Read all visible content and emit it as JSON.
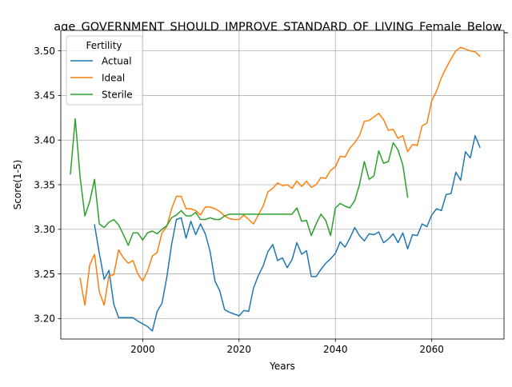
{
  "chart_data": {
    "type": "line",
    "title": "age_GOVERNMENT_SHOULD_IMPROVE_STANDARD_OF_LIVING_Female_Below_",
    "xlabel": "Years",
    "ylabel": "Score(1-5)",
    "xlim": [
      1983,
      2075
    ],
    "ylim": [
      3.177,
      3.523
    ],
    "xticks": [
      2000,
      2020,
      2040,
      2060
    ],
    "xtick_labels": [
      "2000",
      "2020",
      "2040",
      "2060"
    ],
    "yticks": [
      3.2,
      3.25,
      3.3,
      3.35,
      3.4,
      3.45,
      3.5
    ],
    "ytick_labels": [
      "3.20",
      "3.25",
      "3.30",
      "3.35",
      "3.40",
      "3.45",
      "3.50"
    ],
    "grid": true,
    "legend": {
      "title": "Fertility",
      "position": "top-left"
    },
    "series": [
      {
        "name": "Actual",
        "color": "#1f77b4",
        "x": [
          1990,
          1991,
          1992,
          1993,
          1994,
          1995,
          1996,
          1997,
          1998,
          1999,
          2000,
          2001,
          2002,
          2003,
          2004,
          2005,
          2006,
          2007,
          2008,
          2009,
          2010,
          2011,
          2012,
          2013,
          2014,
          2015,
          2016,
          2017,
          2018,
          2019,
          2020,
          2021,
          2022,
          2023,
          2024,
          2025,
          2026,
          2027,
          2028,
          2029,
          2030,
          2031,
          2032,
          2033,
          2034,
          2035,
          2036,
          2037,
          2038,
          2039,
          2040,
          2041,
          2042,
          2043,
          2044,
          2045,
          2046,
          2047,
          2048,
          2049,
          2050,
          2051,
          2052,
          2053,
          2054,
          2055,
          2056,
          2057,
          2058,
          2059,
          2060,
          2061,
          2062,
          2063,
          2064,
          2065,
          2066,
          2067,
          2068,
          2069,
          2070
        ],
        "y": [
          3.305,
          3.273,
          3.244,
          3.254,
          3.216,
          3.201,
          3.201,
          3.201,
          3.201,
          3.197,
          3.194,
          3.191,
          3.186,
          3.208,
          3.217,
          3.246,
          3.283,
          3.311,
          3.313,
          3.29,
          3.309,
          3.294,
          3.306,
          3.295,
          3.275,
          3.242,
          3.231,
          3.21,
          3.207,
          3.205,
          3.203,
          3.209,
          3.208,
          3.234,
          3.248,
          3.259,
          3.275,
          3.283,
          3.265,
          3.268,
          3.257,
          3.266,
          3.285,
          3.272,
          3.276,
          3.247,
          3.247,
          3.255,
          3.262,
          3.267,
          3.273,
          3.286,
          3.28,
          3.29,
          3.302,
          3.293,
          3.287,
          3.295,
          3.294,
          3.297,
          3.285,
          3.289,
          3.295,
          3.285,
          3.296,
          3.278,
          3.294,
          3.293,
          3.306,
          3.303,
          3.316,
          3.323,
          3.321,
          3.339,
          3.34,
          3.364,
          3.355,
          3.387,
          3.38,
          3.405,
          3.392
        ]
      },
      {
        "name": "Ideal",
        "color": "#ff7f0e",
        "x": [
          1987,
          1988,
          1989,
          1990,
          1991,
          1992,
          1993,
          1994,
          1995,
          1996,
          1997,
          1998,
          1999,
          2000,
          2001,
          2002,
          2003,
          2004,
          2005,
          2006,
          2007,
          2008,
          2009,
          2010,
          2011,
          2012,
          2013,
          2014,
          2015,
          2016,
          2017,
          2018,
          2019,
          2020,
          2021,
          2022,
          2023,
          2024,
          2025,
          2026,
          2027,
          2028,
          2029,
          2030,
          2031,
          2032,
          2033,
          2034,
          2035,
          2036,
          2037,
          2038,
          2039,
          2040,
          2041,
          2042,
          2043,
          2044,
          2045,
          2046,
          2047,
          2048,
          2049,
          2050,
          2051,
          2052,
          2053,
          2054,
          2055,
          2056,
          2057,
          2058,
          2059,
          2060,
          2061,
          2062,
          2063,
          2064,
          2065,
          2066,
          2067,
          2068,
          2069,
          2070
        ],
        "y": [
          3.245,
          3.215,
          3.26,
          3.272,
          3.23,
          3.215,
          3.248,
          3.249,
          3.277,
          3.268,
          3.262,
          3.265,
          3.25,
          3.242,
          3.253,
          3.27,
          3.274,
          3.296,
          3.303,
          3.323,
          3.337,
          3.337,
          3.323,
          3.323,
          3.321,
          3.316,
          3.325,
          3.325,
          3.323,
          3.32,
          3.315,
          3.312,
          3.311,
          3.311,
          3.316,
          3.311,
          3.306,
          3.316,
          3.326,
          3.342,
          3.346,
          3.352,
          3.349,
          3.35,
          3.346,
          3.354,
          3.348,
          3.354,
          3.347,
          3.35,
          3.358,
          3.357,
          3.366,
          3.37,
          3.382,
          3.381,
          3.391,
          3.397,
          3.405,
          3.421,
          3.422,
          3.426,
          3.43,
          3.423,
          3.411,
          3.412,
          3.402,
          3.405,
          3.387,
          3.395,
          3.394,
          3.416,
          3.419,
          3.444,
          3.455,
          3.47,
          3.481,
          3.491,
          3.5,
          3.504,
          3.502,
          3.5,
          3.499,
          3.494
        ]
      },
      {
        "name": "Sterile",
        "color": "#2ca02c",
        "x": [
          1985,
          1986,
          1987,
          1988,
          1989,
          1990,
          1991,
          1992,
          1993,
          1994,
          1995,
          1996,
          1997,
          1998,
          1999,
          2000,
          2001,
          2002,
          2003,
          2004,
          2005,
          2006,
          2007,
          2008,
          2009,
          2010,
          2011,
          2012,
          2013,
          2014,
          2015,
          2016,
          2017,
          2018,
          2019,
          2020,
          2021,
          2022,
          2023,
          2024,
          2025,
          2026,
          2027,
          2028,
          2029,
          2030,
          2031,
          2032,
          2033,
          2034,
          2035,
          2036,
          2037,
          2038,
          2039,
          2040,
          2041,
          2042,
          2043,
          2044,
          2045,
          2046,
          2047,
          2048,
          2049,
          2050,
          2051,
          2052,
          2053,
          2054,
          2055
        ],
        "y": [
          3.362,
          3.424,
          3.359,
          3.315,
          3.331,
          3.356,
          3.306,
          3.302,
          3.308,
          3.311,
          3.305,
          3.294,
          3.282,
          3.296,
          3.296,
          3.288,
          3.296,
          3.298,
          3.295,
          3.3,
          3.304,
          3.313,
          3.316,
          3.321,
          3.315,
          3.315,
          3.319,
          3.311,
          3.311,
          3.313,
          3.311,
          3.311,
          3.315,
          3.317,
          3.317,
          3.317,
          3.317,
          3.317,
          3.317,
          3.317,
          3.317,
          3.317,
          3.317,
          3.317,
          3.317,
          3.317,
          3.317,
          3.324,
          3.309,
          3.31,
          3.293,
          3.306,
          3.317,
          3.31,
          3.293,
          3.324,
          3.329,
          3.326,
          3.324,
          3.332,
          3.35,
          3.376,
          3.356,
          3.36,
          3.388,
          3.374,
          3.376,
          3.397,
          3.389,
          3.372,
          3.336
        ]
      }
    ]
  }
}
